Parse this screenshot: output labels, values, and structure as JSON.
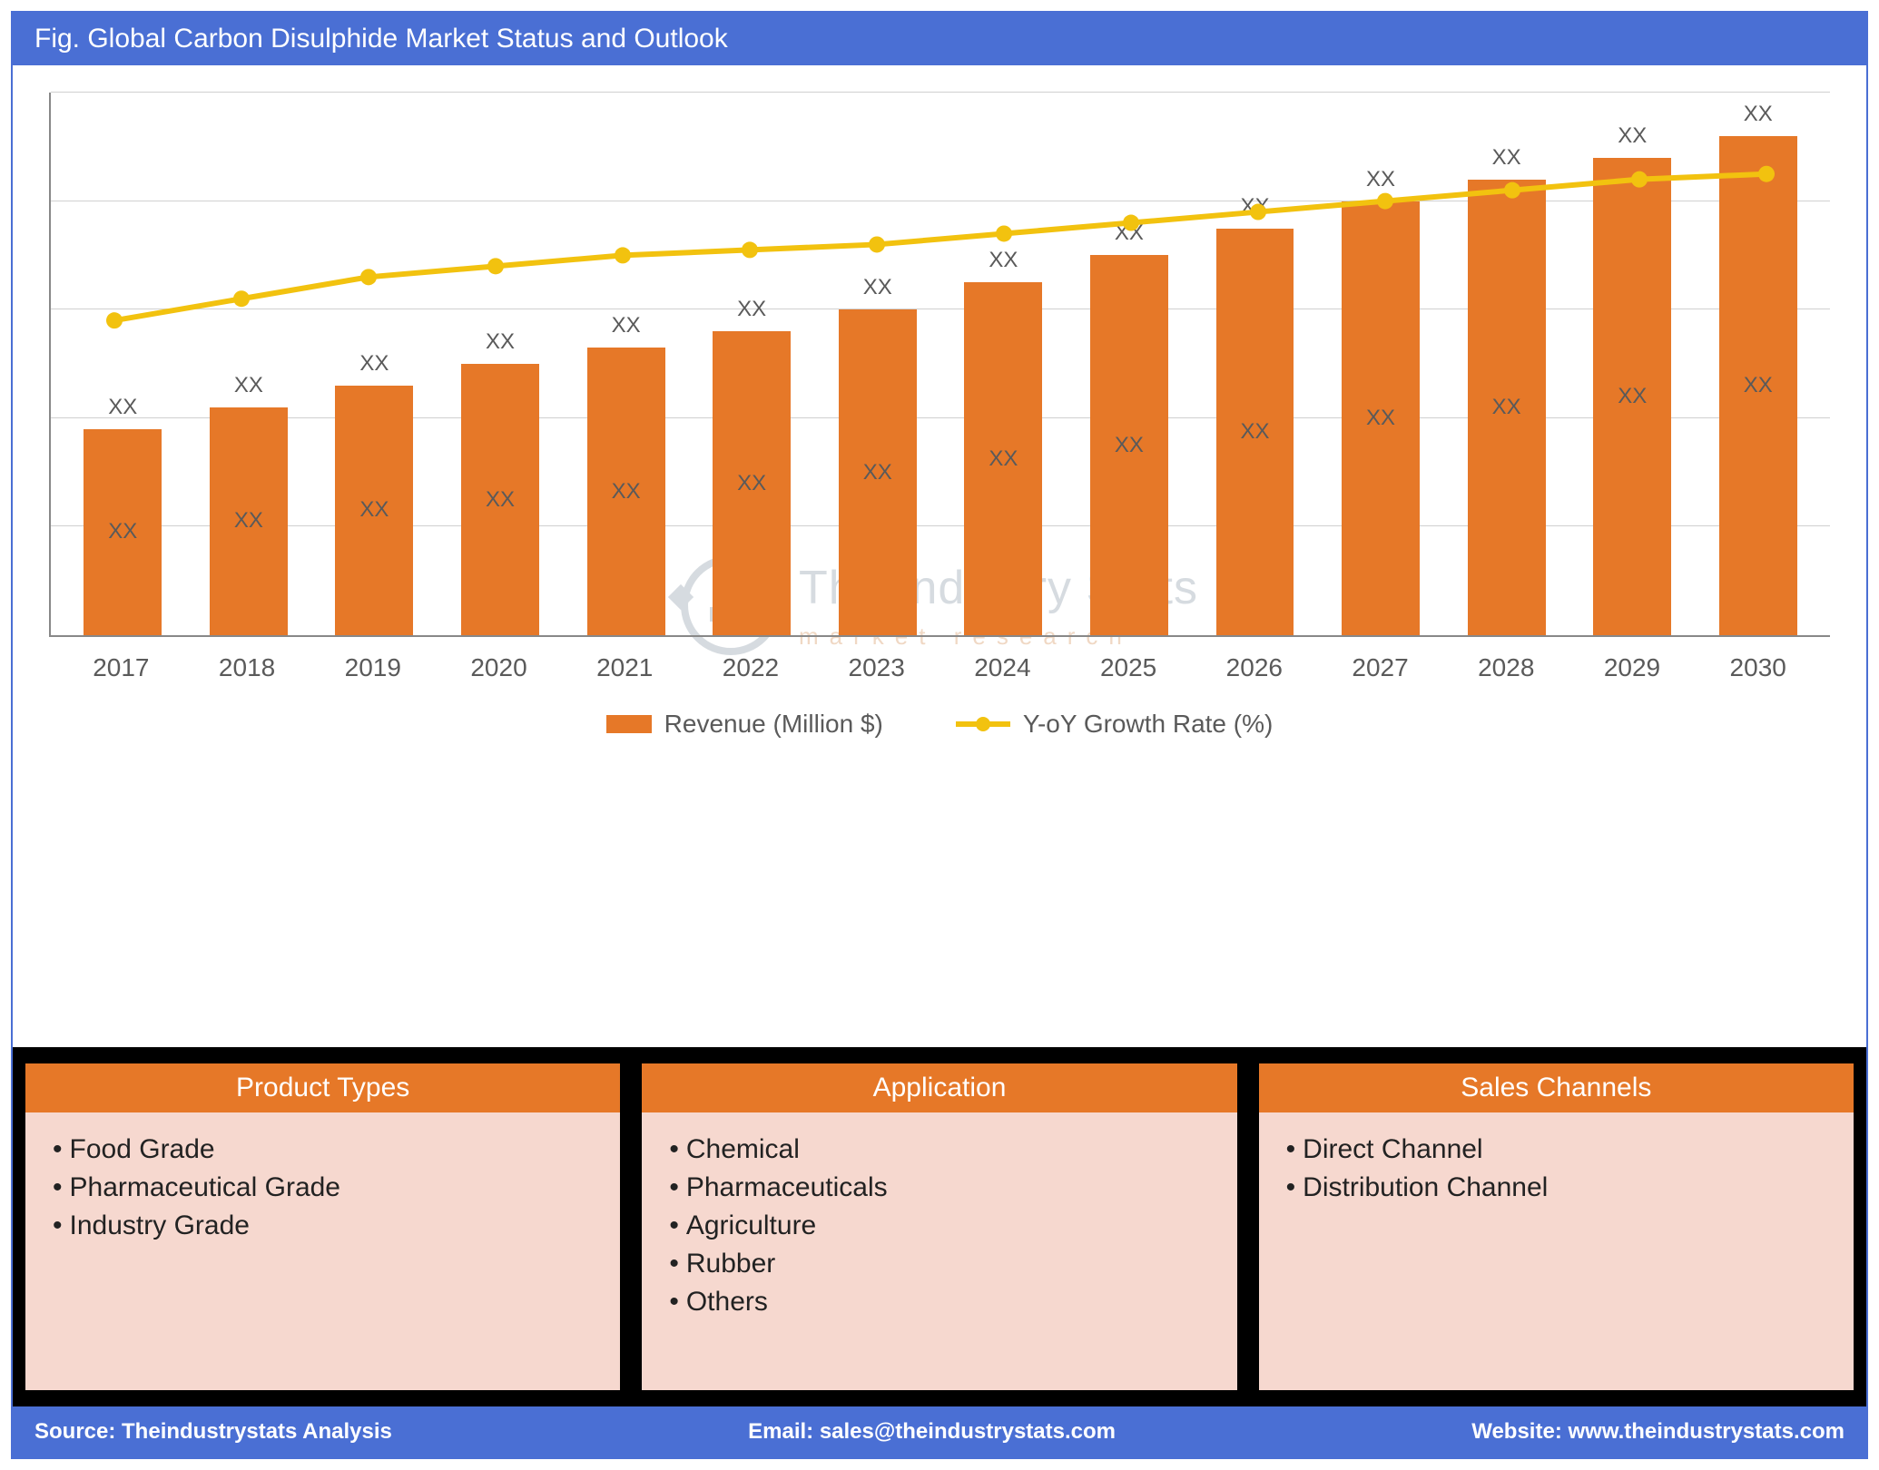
{
  "title": "Fig. Global Carbon Disulphide Market Status and Outlook",
  "chart": {
    "type": "bar+line",
    "categories": [
      "2017",
      "2018",
      "2019",
      "2020",
      "2021",
      "2022",
      "2023",
      "2024",
      "2025",
      "2026",
      "2027",
      "2028",
      "2029",
      "2030"
    ],
    "bar_heights_pct": [
      38,
      42,
      46,
      50,
      53,
      56,
      60,
      65,
      70,
      75,
      80,
      84,
      88,
      92
    ],
    "bar_color": "#e67828",
    "bar_inner_label": "XX",
    "bar_top_label": "XX",
    "line_values_pct": [
      58,
      62,
      66,
      68,
      70,
      71,
      72,
      74,
      76,
      78,
      80,
      82,
      84,
      85
    ],
    "line_color": "#f2c20f",
    "line_width": 6,
    "marker_radius": 9,
    "grid_color": "#d0d0d0",
    "gridlines_pct": [
      0,
      20,
      40,
      60,
      80,
      100
    ],
    "axis_color": "#888888",
    "background_color": "#ffffff",
    "x_label_fontsize": 28,
    "value_label_fontsize": 24,
    "label_color": "#5a5a5a"
  },
  "legend": {
    "revenue": "Revenue (Million $)",
    "growth": "Y-oY Growth Rate (%)"
  },
  "watermark": {
    "main": "The Industry Stats",
    "sub": "market   research"
  },
  "panels": [
    {
      "title": "Product Types",
      "items": [
        "Food Grade",
        "Pharmaceutical Grade",
        "Industry Grade"
      ]
    },
    {
      "title": "Application",
      "items": [
        "Chemical",
        "Pharmaceuticals",
        "Agriculture",
        "Rubber",
        "Others"
      ]
    },
    {
      "title": "Sales Channels",
      "items": [
        "Direct Channel",
        "Distribution Channel"
      ]
    }
  ],
  "footer": {
    "source": "Source: Theindustrystats Analysis",
    "email": "Email: sales@theindustrystats.com",
    "website": "Website: www.theindustrystats.com"
  },
  "colors": {
    "header_bg": "#4a6fd4",
    "panel_header_bg": "#e67828",
    "panel_body_bg": "#f6d8cf",
    "panels_container_bg": "#000000"
  }
}
